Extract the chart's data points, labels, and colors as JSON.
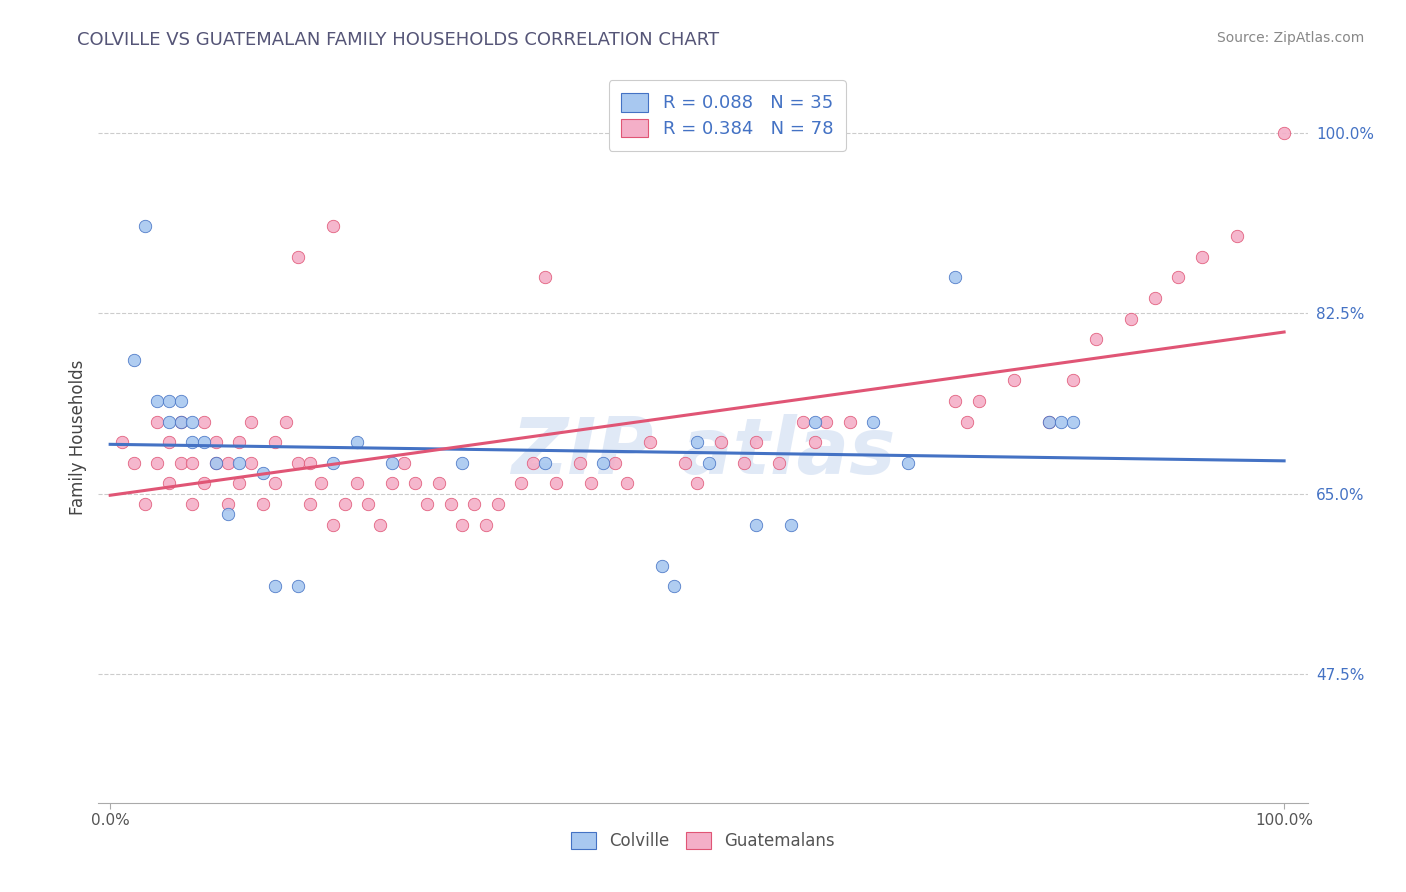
{
  "title": "COLVILLE VS GUATEMALAN FAMILY HOUSEHOLDS CORRELATION CHART",
  "source": "Source: ZipAtlas.com",
  "ylabel": "Family Households",
  "colville_R": 0.088,
  "colville_N": 35,
  "guatemalan_R": 0.384,
  "guatemalan_N": 78,
  "colville_color": "#a8c8f0",
  "guatemalan_color": "#f4afc8",
  "colville_line_color": "#4472c4",
  "guatemalan_line_color": "#e05575",
  "ytick_values": [
    0.475,
    0.65,
    0.825,
    1.0
  ],
  "ytick_labels": [
    "47.5%",
    "65.0%",
    "82.5%",
    "100.0%"
  ],
  "xtick_values": [
    0.0,
    1.0
  ],
  "xtick_labels": [
    "0.0%",
    "100.0%"
  ],
  "colville_x": [
    0.02,
    0.03,
    0.04,
    0.05,
    0.05,
    0.06,
    0.06,
    0.07,
    0.07,
    0.08,
    0.09,
    0.1,
    0.11,
    0.13,
    0.14,
    0.16,
    0.19,
    0.21,
    0.24,
    0.3,
    0.37,
    0.42,
    0.5,
    0.51,
    0.6,
    0.65,
    0.72,
    0.8,
    0.81,
    0.82,
    0.47,
    0.48,
    0.55,
    0.58,
    0.68
  ],
  "colville_y": [
    0.78,
    0.91,
    0.74,
    0.72,
    0.74,
    0.72,
    0.74,
    0.72,
    0.7,
    0.7,
    0.68,
    0.63,
    0.68,
    0.67,
    0.56,
    0.56,
    0.68,
    0.7,
    0.68,
    0.68,
    0.68,
    0.68,
    0.7,
    0.68,
    0.72,
    0.72,
    0.86,
    0.72,
    0.72,
    0.72,
    0.58,
    0.56,
    0.62,
    0.62,
    0.68
  ],
  "guatemalan_x": [
    0.01,
    0.02,
    0.03,
    0.04,
    0.04,
    0.05,
    0.05,
    0.06,
    0.06,
    0.07,
    0.07,
    0.08,
    0.08,
    0.09,
    0.09,
    0.1,
    0.1,
    0.11,
    0.11,
    0.12,
    0.12,
    0.13,
    0.14,
    0.14,
    0.15,
    0.16,
    0.17,
    0.17,
    0.18,
    0.19,
    0.2,
    0.21,
    0.22,
    0.23,
    0.24,
    0.25,
    0.26,
    0.27,
    0.28,
    0.29,
    0.3,
    0.31,
    0.32,
    0.33,
    0.35,
    0.36,
    0.38,
    0.4,
    0.41,
    0.43,
    0.44,
    0.46,
    0.49,
    0.5,
    0.52,
    0.54,
    0.55,
    0.57,
    0.59,
    0.6,
    0.61,
    0.63,
    0.72,
    0.73,
    0.74,
    0.77,
    0.8,
    0.82,
    0.84,
    0.87,
    0.89,
    0.91,
    0.93,
    0.96,
    0.16,
    0.19,
    0.37,
    1.0
  ],
  "guatemalan_y": [
    0.7,
    0.68,
    0.64,
    0.68,
    0.72,
    0.66,
    0.7,
    0.68,
    0.72,
    0.64,
    0.68,
    0.66,
    0.72,
    0.68,
    0.7,
    0.64,
    0.68,
    0.66,
    0.7,
    0.68,
    0.72,
    0.64,
    0.66,
    0.7,
    0.72,
    0.68,
    0.64,
    0.68,
    0.66,
    0.62,
    0.64,
    0.66,
    0.64,
    0.62,
    0.66,
    0.68,
    0.66,
    0.64,
    0.66,
    0.64,
    0.62,
    0.64,
    0.62,
    0.64,
    0.66,
    0.68,
    0.66,
    0.68,
    0.66,
    0.68,
    0.66,
    0.7,
    0.68,
    0.66,
    0.7,
    0.68,
    0.7,
    0.68,
    0.72,
    0.7,
    0.72,
    0.72,
    0.74,
    0.72,
    0.74,
    0.76,
    0.72,
    0.76,
    0.8,
    0.82,
    0.84,
    0.86,
    0.88,
    0.9,
    0.88,
    0.91,
    0.86,
    1.0
  ]
}
